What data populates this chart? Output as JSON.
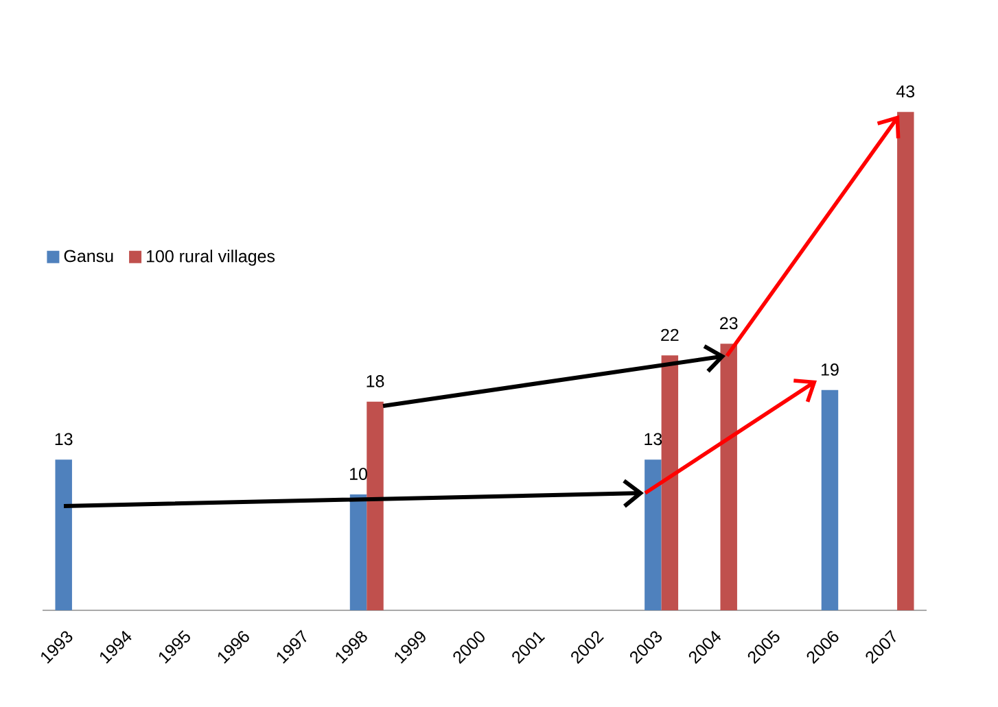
{
  "chart_data": {
    "type": "bar",
    "categories": [
      "1993",
      "1994",
      "1995",
      "1996",
      "1997",
      "1998",
      "1999",
      "2000",
      "2001",
      "2002",
      "2003",
      "2004",
      "2005",
      "2006",
      "2007"
    ],
    "series": [
      {
        "name": "Gansu",
        "color": "#4f81bd",
        "values": [
          13,
          null,
          null,
          null,
          null,
          10,
          null,
          null,
          null,
          null,
          13,
          null,
          null,
          19,
          null
        ]
      },
      {
        "name": "100 rural villages",
        "color": "#c0504d",
        "values": [
          null,
          null,
          null,
          null,
          null,
          18,
          null,
          null,
          null,
          null,
          22,
          23,
          null,
          null,
          43
        ]
      }
    ],
    "data_labels": true,
    "legend": "left"
  }
}
